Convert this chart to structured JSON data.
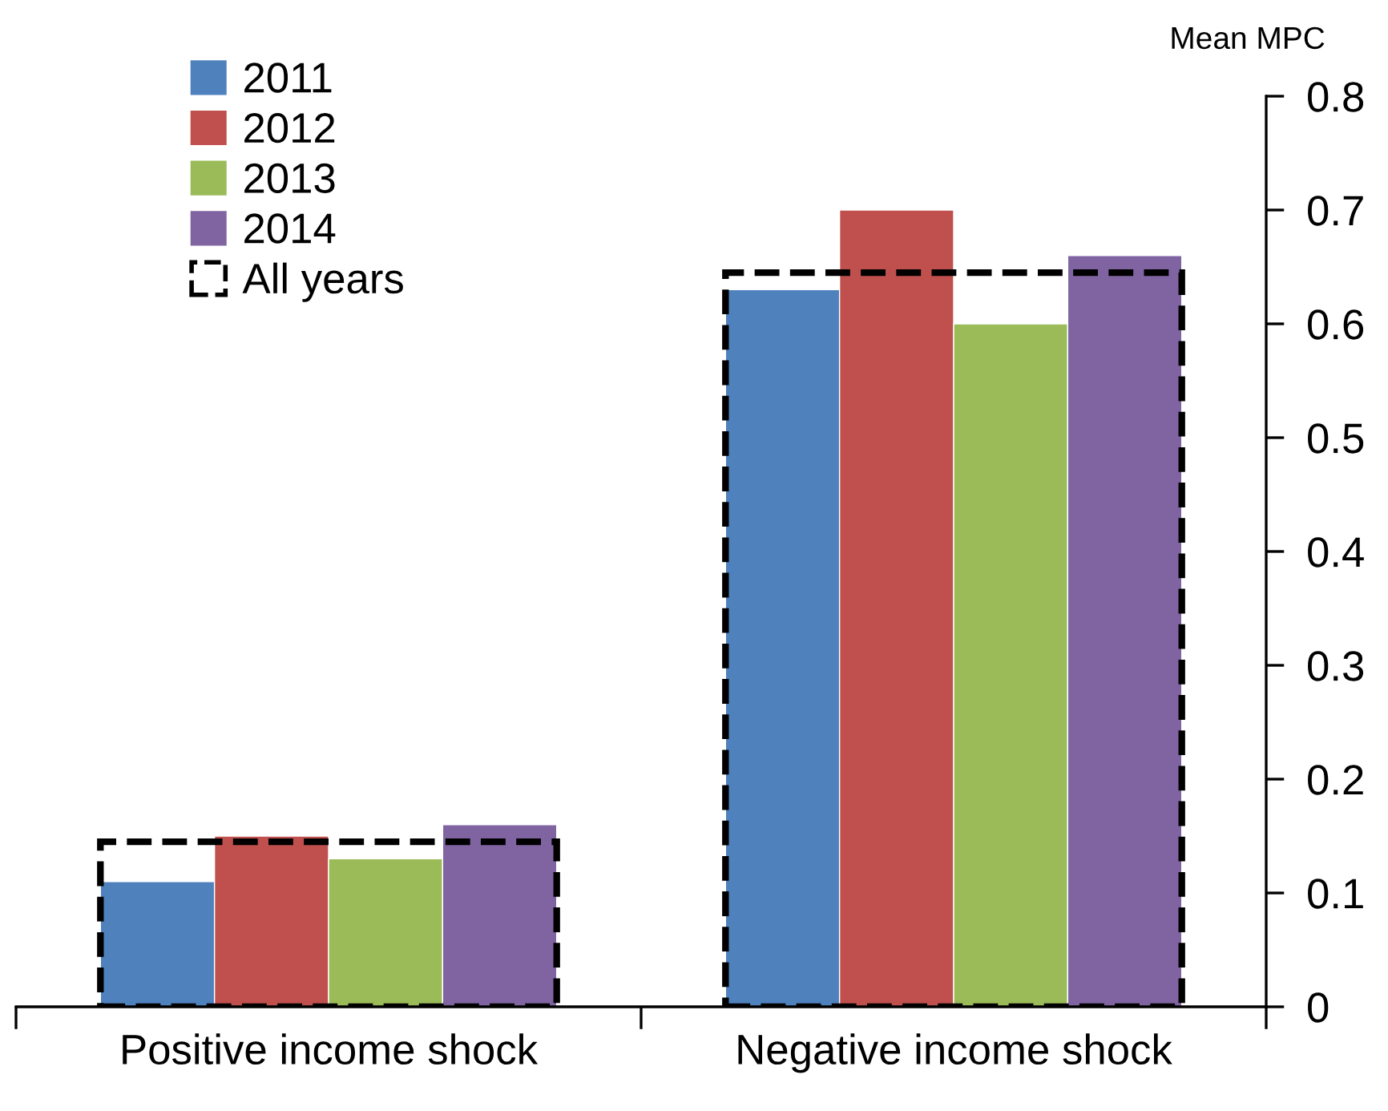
{
  "chart_data": {
    "type": "bar",
    "ylabel": "Mean MPC",
    "categories": [
      "Positive income shock",
      "Negative income shock"
    ],
    "series": [
      {
        "name": "2011",
        "color": "#4f81bd",
        "values": [
          0.11,
          0.63
        ]
      },
      {
        "name": "2012",
        "color": "#c0504d",
        "values": [
          0.15,
          0.7
        ]
      },
      {
        "name": "2013",
        "color": "#9bbb59",
        "values": [
          0.13,
          0.6
        ]
      },
      {
        "name": "2014",
        "color": "#8064a2",
        "values": [
          0.16,
          0.66
        ]
      },
      {
        "name": "All years",
        "type": "bar",
        "color": "#000000",
        "line_style": "dashed",
        "values": [
          0.145,
          0.645
        ]
      }
    ],
    "ylim": [
      0,
      0.8
    ],
    "yticks": [
      0,
      0.1,
      0.2,
      0.3,
      0.4,
      0.5,
      0.6,
      0.7,
      0.8
    ],
    "grid": false,
    "legend": "top left"
  }
}
